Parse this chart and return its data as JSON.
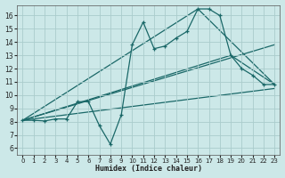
{
  "bg_color": "#cce8e8",
  "grid_color": "#aacccc",
  "line_color": "#1a6868",
  "line_width": 0.9,
  "marker": "+",
  "marker_size": 3.5,
  "marker_lw": 0.9,
  "xlabel": "Humidex (Indice chaleur)",
  "xlim": [
    -0.5,
    23.5
  ],
  "ylim": [
    5.5,
    16.8
  ],
  "xticks": [
    0,
    1,
    2,
    3,
    4,
    5,
    6,
    7,
    8,
    9,
    10,
    11,
    12,
    13,
    14,
    15,
    16,
    17,
    18,
    19,
    20,
    21,
    22,
    23
  ],
  "yticks": [
    6,
    7,
    8,
    9,
    10,
    11,
    12,
    13,
    14,
    15,
    16
  ],
  "series1_x": [
    0,
    1,
    2,
    3,
    4,
    5,
    6,
    7,
    8,
    9,
    10,
    11,
    12,
    13,
    14,
    15,
    16,
    17,
    18,
    19,
    20,
    21,
    22,
    23
  ],
  "series1_y": [
    8.1,
    8.1,
    8.05,
    8.2,
    8.2,
    9.5,
    9.5,
    7.7,
    6.3,
    8.5,
    13.8,
    15.5,
    13.5,
    13.7,
    14.3,
    14.8,
    16.5,
    16.5,
    16.0,
    13.0,
    12.0,
    11.5,
    10.8,
    10.8
  ],
  "series2_x": [
    0,
    19,
    23
  ],
  "series2_y": [
    8.1,
    13.0,
    10.8
  ],
  "series3_x": [
    0,
    16,
    23
  ],
  "series3_y": [
    8.1,
    16.5,
    10.8
  ],
  "series4_x": [
    0,
    23
  ],
  "series4_y": [
    8.1,
    10.5
  ],
  "series5_x": [
    0,
    23
  ],
  "series5_y": [
    8.1,
    13.8
  ]
}
